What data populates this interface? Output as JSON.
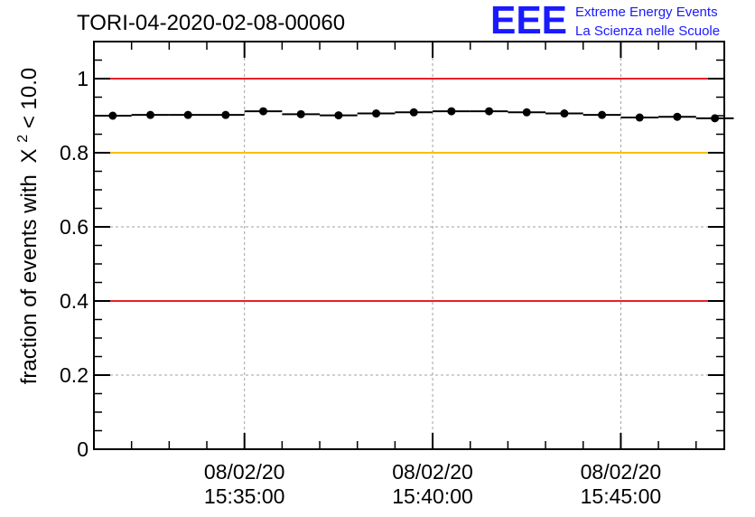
{
  "chart_data": {
    "type": "scatter",
    "title": "TORI-04-2020-02-08-00060",
    "ylabel": "fraction of events with",
    "ylabel_symbol": "X",
    "ylabel_superscript": "2",
    "ylabel_tail": " < 10.0",
    "xlabel": "",
    "ylim": [
      0,
      1.1
    ],
    "xlim": [
      "15:31:00",
      "15:47:45"
    ],
    "grid": true,
    "x_ticks": [
      {
        "date": "08/02/20",
        "time": "15:35:00"
      },
      {
        "date": "08/02/20",
        "time": "15:40:00"
      },
      {
        "date": "08/02/20",
        "time": "15:45:00"
      }
    ],
    "y_ticks": [
      "0",
      "0.2",
      "0.4",
      "0.6",
      "0.8",
      "1"
    ],
    "reference_lines": [
      {
        "value": 1.0,
        "color": "#e8202a"
      },
      {
        "value": 0.8,
        "color": "#f5c000"
      },
      {
        "value": 0.4,
        "color": "#e8202a"
      }
    ],
    "series": [
      {
        "x": [
          "15:31:30",
          "15:32:30",
          "15:33:30",
          "15:34:30",
          "15:35:30",
          "15:36:30",
          "15:37:30",
          "15:38:30",
          "15:39:30",
          "15:40:30",
          "15:41:30",
          "15:42:30",
          "15:43:30",
          "15:44:30",
          "15:45:30",
          "15:46:30",
          "15:47:30"
        ],
        "y": [
          0.9,
          0.902,
          0.902,
          0.902,
          0.912,
          0.904,
          0.901,
          0.906,
          0.909,
          0.912,
          0.912,
          0.909,
          0.906,
          0.902,
          0.895,
          0.897,
          0.893
        ],
        "x_half_width_seconds": 30,
        "color": "#000000"
      }
    ]
  },
  "logo": {
    "text": "EEE",
    "line1": "Extreme Energy Events",
    "line2": "La Scienza nelle Scuole",
    "color": "#1a1aff"
  }
}
